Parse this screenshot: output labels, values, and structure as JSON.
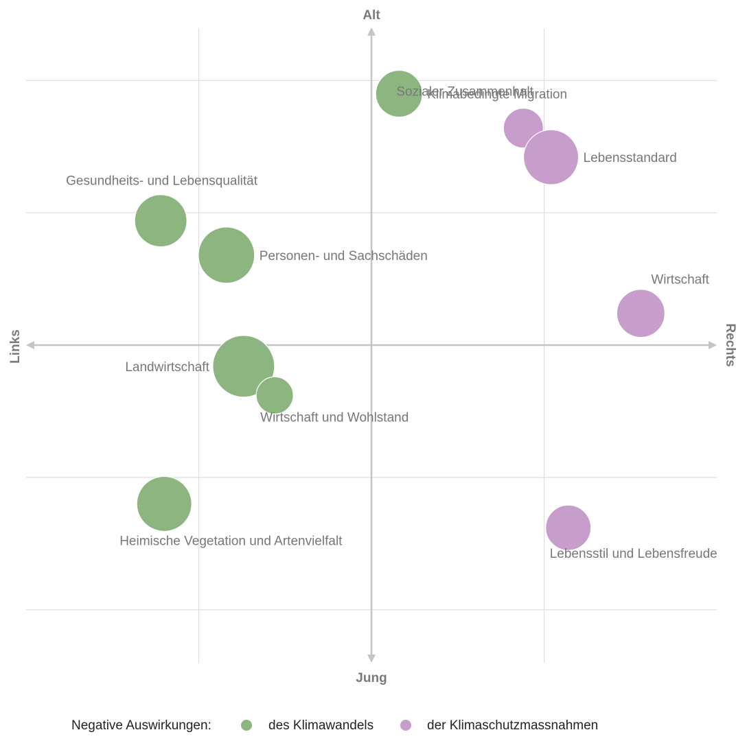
{
  "chart_data": {
    "type": "scatter",
    "subtype": "bubble",
    "axes": {
      "x_negative_label": "Links",
      "x_positive_label": "Rechts",
      "y_positive_label": "Alt",
      "y_negative_label": "Jung"
    },
    "xlim": [
      -1,
      1
    ],
    "ylim": [
      -1,
      1
    ],
    "grid": true,
    "legend": {
      "title": "Negative Auswirkungen:",
      "position": "bottom",
      "entries": [
        {
          "name": "des Klimawandels",
          "color": "#8db580"
        },
        {
          "name": "der Klimaschutzmassnahmen",
          "color": "#c79dcc"
        }
      ]
    },
    "series": [
      {
        "name": "des Klimawandels",
        "color": "#8db580",
        "points": [
          {
            "label": "Klimabedingte Migration",
            "x": 0.08,
            "y": 0.95,
            "size": 34,
            "label_pos": "right"
          },
          {
            "label": "Gesundheits- und Lebensqualität",
            "x": -0.61,
            "y": 0.47,
            "size": 38,
            "label_pos": "above"
          },
          {
            "label": "Personen- und Sachschäden",
            "x": -0.42,
            "y": 0.34,
            "size": 41,
            "label_pos": "right"
          },
          {
            "label": "Landwirtschaft",
            "x": -0.37,
            "y": -0.08,
            "size": 45,
            "label_pos": "left"
          },
          {
            "label": "Wirtschaft und Wohlstand",
            "x": -0.28,
            "y": -0.19,
            "size": 27,
            "label_pos": "below-right"
          },
          {
            "label": "Heimische Vegetation und Artenvielfalt",
            "x": -0.6,
            "y": -0.6,
            "size": 40,
            "label_pos": "below"
          }
        ]
      },
      {
        "name": "der Klimaschutzmassnahmen",
        "color": "#c79dcc",
        "points": [
          {
            "label": "Sozialer Zusammenhalt",
            "x": 0.44,
            "y": 0.82,
            "size": 29,
            "label_pos": "above-left"
          },
          {
            "label": "Lebensstandard",
            "x": 0.52,
            "y": 0.71,
            "size": 40,
            "label_pos": "right"
          },
          {
            "label": "Wirtschaft",
            "x": 0.78,
            "y": 0.12,
            "size": 35,
            "label_pos": "above-right"
          },
          {
            "label": "Lebensstil und Lebensfreude",
            "x": 0.57,
            "y": -0.69,
            "size": 33,
            "label_pos": "below-right"
          }
        ]
      }
    ]
  }
}
